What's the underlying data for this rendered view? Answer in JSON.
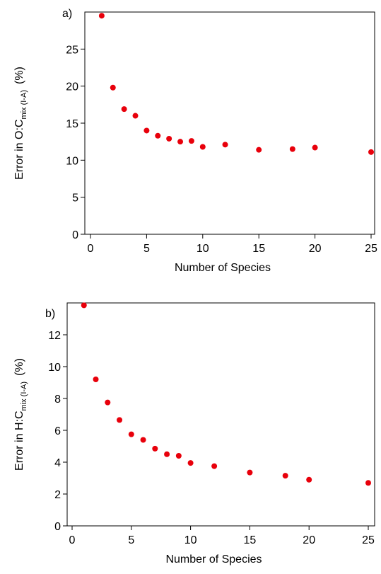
{
  "chart_data": [
    {
      "type": "scatter",
      "panel_label": "a)",
      "xlabel": "Number of Species",
      "ylabel": {
        "prefix": "Error in O:C",
        "subscript": "mix (I-A)",
        "suffix": "(%)"
      },
      "xlim": [
        0,
        25
      ],
      "ylim": [
        0,
        30
      ],
      "xticks": [
        0,
        5,
        10,
        15,
        20,
        25
      ],
      "yticks": [
        0,
        5,
        10,
        15,
        20,
        25
      ],
      "grid": false,
      "series": [
        {
          "color": "#e8000b",
          "x": [
            1,
            2,
            3,
            4,
            5,
            6,
            7,
            8,
            9,
            10,
            12,
            15,
            18,
            20,
            25
          ],
          "y": [
            29.5,
            19.8,
            16.9,
            16.0,
            14.0,
            13.3,
            12.9,
            12.5,
            12.6,
            11.8,
            12.1,
            11.4,
            11.5,
            11.7,
            11.1
          ]
        }
      ]
    },
    {
      "type": "scatter",
      "panel_label": "b)",
      "xlabel": "Number of Species",
      "ylabel": {
        "prefix": "Error in H:C",
        "subscript": "mix (I-A)",
        "suffix": "(%)"
      },
      "xlim": [
        0,
        25
      ],
      "ylim": [
        0,
        14
      ],
      "xticks": [
        0,
        5,
        10,
        15,
        20,
        25
      ],
      "yticks": [
        0,
        2,
        4,
        6,
        8,
        10,
        12
      ],
      "grid": false,
      "series": [
        {
          "color": "#e8000b",
          "x": [
            1,
            2,
            3,
            4,
            5,
            6,
            7,
            8,
            9,
            10,
            12,
            15,
            18,
            20,
            25
          ],
          "y": [
            13.85,
            9.2,
            7.75,
            6.65,
            5.75,
            5.4,
            4.85,
            4.5,
            4.4,
            3.95,
            3.75,
            3.35,
            3.15,
            2.9,
            2.7
          ]
        }
      ]
    }
  ]
}
